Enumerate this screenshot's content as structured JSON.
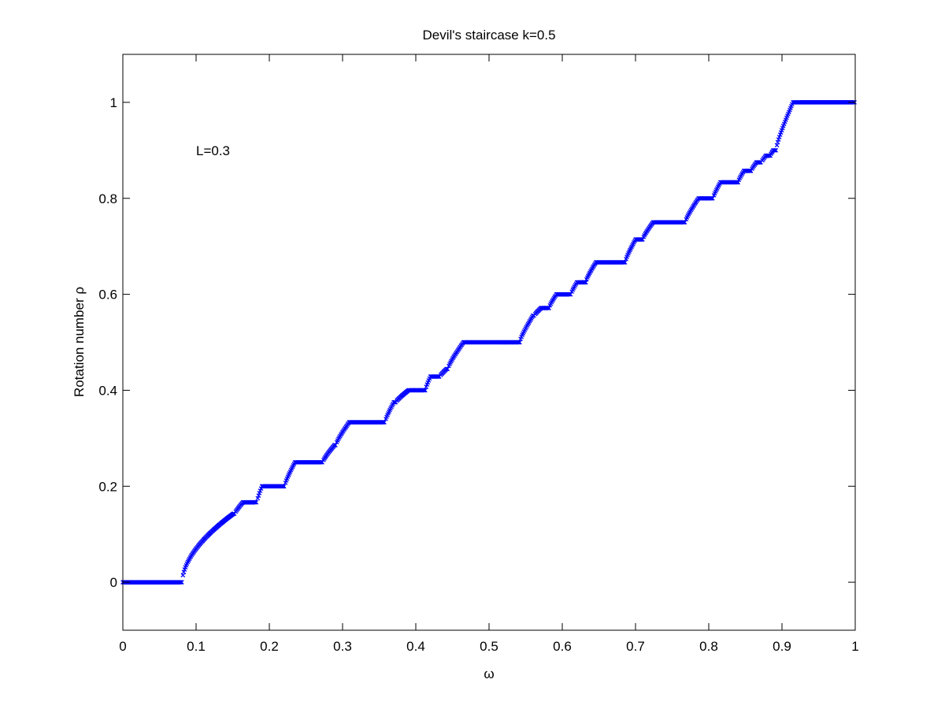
{
  "chart_data": {
    "type": "scatter",
    "title": "Devil's staircase k=0.5",
    "xlabel": "ω",
    "ylabel": "Rotation number ρ",
    "xlim": [
      0,
      1
    ],
    "ylim": [
      -0.1,
      1.1
    ],
    "xticks": [
      0,
      0.1,
      0.2,
      0.3,
      0.4,
      0.5,
      0.6,
      0.7,
      0.8,
      0.9,
      1
    ],
    "xtick_labels": [
      "0",
      "0.1",
      "0.2",
      "0.3",
      "0.4",
      "0.5",
      "0.6",
      "0.7",
      "0.8",
      "0.9",
      "1"
    ],
    "yticks": [
      0,
      0.2,
      0.4,
      0.6,
      0.8,
      1
    ],
    "ytick_labels": [
      "0",
      "0.2",
      "0.4",
      "0.6",
      "0.8",
      "1"
    ],
    "grid": false,
    "annotations": [
      {
        "text": "L=0.3",
        "x": 0.1,
        "y": 0.9
      }
    ],
    "marker_color": "#0000ff",
    "marker": "x",
    "plateaus": [
      {
        "p": 0,
        "q": 1,
        "x_start": 0.0,
        "x_end": 0.081
      },
      {
        "p": 1,
        "q": 7,
        "x_start": 0.151,
        "x_end": 0.153
      },
      {
        "p": 1,
        "q": 6,
        "x_start": 0.164,
        "x_end": 0.183
      },
      {
        "p": 1,
        "q": 5,
        "x_start": 0.19,
        "x_end": 0.221
      },
      {
        "p": 1,
        "q": 4,
        "x_start": 0.235,
        "x_end": 0.273
      },
      {
        "p": 2,
        "q": 7,
        "x_start": 0.289,
        "x_end": 0.291
      },
      {
        "p": 1,
        "q": 3,
        "x_start": 0.309,
        "x_end": 0.358
      },
      {
        "p": 3,
        "q": 8,
        "x_start": 0.37,
        "x_end": 0.373
      },
      {
        "p": 2,
        "q": 5,
        "x_start": 0.39,
        "x_end": 0.413
      },
      {
        "p": 3,
        "q": 7,
        "x_start": 0.42,
        "x_end": 0.433
      },
      {
        "p": 4,
        "q": 9,
        "x_start": 0.442,
        "x_end": 0.444
      },
      {
        "p": 1,
        "q": 2,
        "x_start": 0.465,
        "x_end": 0.542
      },
      {
        "p": 5,
        "q": 9,
        "x_start": 0.56,
        "x_end": 0.562
      },
      {
        "p": 4,
        "q": 7,
        "x_start": 0.571,
        "x_end": 0.582
      },
      {
        "p": 3,
        "q": 5,
        "x_start": 0.592,
        "x_end": 0.612
      },
      {
        "p": 5,
        "q": 8,
        "x_start": 0.62,
        "x_end": 0.632
      },
      {
        "p": 2,
        "q": 3,
        "x_start": 0.646,
        "x_end": 0.686
      },
      {
        "p": 5,
        "q": 7,
        "x_start": 0.7,
        "x_end": 0.71
      },
      {
        "p": 3,
        "q": 4,
        "x_start": 0.724,
        "x_end": 0.768
      },
      {
        "p": 4,
        "q": 5,
        "x_start": 0.786,
        "x_end": 0.806
      },
      {
        "p": 5,
        "q": 6,
        "x_start": 0.816,
        "x_end": 0.84
      },
      {
        "p": 6,
        "q": 7,
        "x_start": 0.848,
        "x_end": 0.858
      },
      {
        "p": 7,
        "q": 8,
        "x_start": 0.865,
        "x_end": 0.872
      },
      {
        "p": 8,
        "q": 9,
        "x_start": 0.878,
        "x_end": 0.884
      },
      {
        "p": 9,
        "q": 10,
        "x_start": 0.888,
        "x_end": 0.892
      },
      {
        "p": 1,
        "q": 1,
        "x_start": 0.915,
        "x_end": 1.0
      }
    ]
  }
}
